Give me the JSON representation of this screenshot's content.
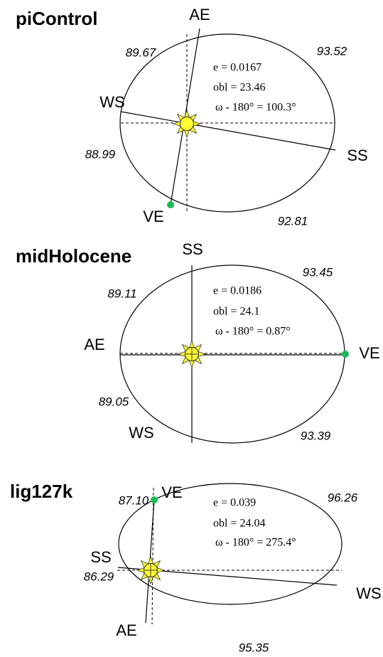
{
  "panels": [
    {
      "title": "piControl",
      "seasons": [
        "AE",
        "WS",
        "SS",
        "VE"
      ],
      "lengths": [
        "89.67",
        "93.52",
        "88.99",
        "92.81"
      ],
      "params": [
        "e = 0.0167",
        "obl = 23.46",
        "ω - 180° = 100.3°"
      ]
    },
    {
      "title": "midHolocene",
      "seasons": [
        "SS",
        "AE",
        "VE",
        "WS"
      ],
      "lengths": [
        "89.11",
        "93.45",
        "89.05",
        "93.39"
      ],
      "params": [
        "e = 0.0186",
        "obl = 24.1",
        "ω - 180° = 0.87°"
      ]
    },
    {
      "title": "lig127k",
      "seasons": [
        "VE",
        "SS",
        "WS",
        "AE"
      ],
      "lengths": [
        "87.10",
        "96.26",
        "86.29",
        "95.35"
      ],
      "params": [
        "e = 0.039",
        "obl = 24.04",
        "ω - 180° = 275.4°"
      ]
    }
  ]
}
